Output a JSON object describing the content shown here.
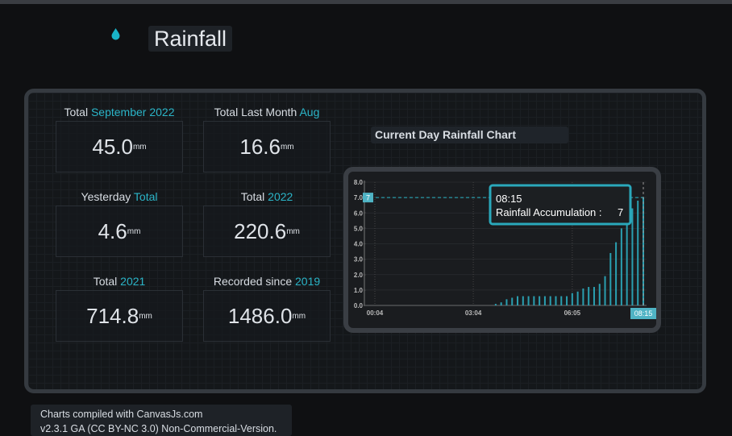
{
  "header": {
    "title": "Rainfall"
  },
  "cards": [
    {
      "label": "Total",
      "accent": "September 2022",
      "value": "45.0",
      "unit": "mm"
    },
    {
      "label": "Total Last Month",
      "accent": "Aug",
      "value": "16.6",
      "unit": "mm"
    },
    {
      "label": "Yesterday",
      "accent": "Total",
      "value": "4.6",
      "unit": "mm"
    },
    {
      "label": "Total",
      "accent": "2022",
      "value": "220.6",
      "unit": "mm"
    },
    {
      "label": "Total",
      "accent": "2021",
      "value": "714.8",
      "unit": "mm"
    },
    {
      "label": "Recorded since",
      "accent": "2019",
      "value": "1486.0",
      "unit": "mm"
    }
  ],
  "chart_data": {
    "type": "bar",
    "title": "Current Day Rainfall Chart",
    "x": [
      "03:45",
      "03:55",
      "04:05",
      "04:15",
      "04:25",
      "04:35",
      "04:45",
      "04:55",
      "05:05",
      "05:15",
      "05:25",
      "05:35",
      "05:45",
      "05:55",
      "06:05",
      "06:15",
      "06:25",
      "06:35",
      "06:45",
      "06:55",
      "07:05",
      "07:15",
      "07:25",
      "07:35",
      "07:45",
      "07:55",
      "08:05",
      "08:15"
    ],
    "values": [
      0.1,
      0.2,
      0.4,
      0.5,
      0.6,
      0.6,
      0.6,
      0.6,
      0.6,
      0.6,
      0.6,
      0.6,
      0.6,
      0.6,
      0.8,
      0.9,
      1.1,
      1.2,
      1.2,
      1.4,
      1.9,
      3.4,
      4.1,
      5.0,
      5.7,
      6.3,
      6.8,
      7
    ],
    "color": "#2a9fb0",
    "xlim": [
      "00:04",
      "08:15"
    ],
    "xticks": [
      "00:04",
      "03:04",
      "06:05"
    ],
    "ylim": [
      0,
      8
    ],
    "yticks": [
      {
        "value": 0,
        "label": "0.0"
      },
      {
        "value": 1,
        "label": "1.0"
      },
      {
        "value": 2,
        "label": "2.0"
      },
      {
        "value": 3,
        "label": "3.0"
      },
      {
        "value": 4,
        "label": "4.0"
      },
      {
        "value": 5,
        "label": "5.0"
      },
      {
        "value": 6,
        "label": "6.0"
      },
      {
        "value": 7,
        "label": "7.0"
      },
      {
        "value": 8,
        "label": "8.0"
      }
    ],
    "grid": true,
    "tooltip_label": "Rainfall Accumulation :"
  },
  "footer": {
    "lines": [
      "Charts compiled with CanvasJs.com",
      "v2.3.1 GA (CC BY-NC 3.0) Non-Commercial-Version."
    ]
  }
}
